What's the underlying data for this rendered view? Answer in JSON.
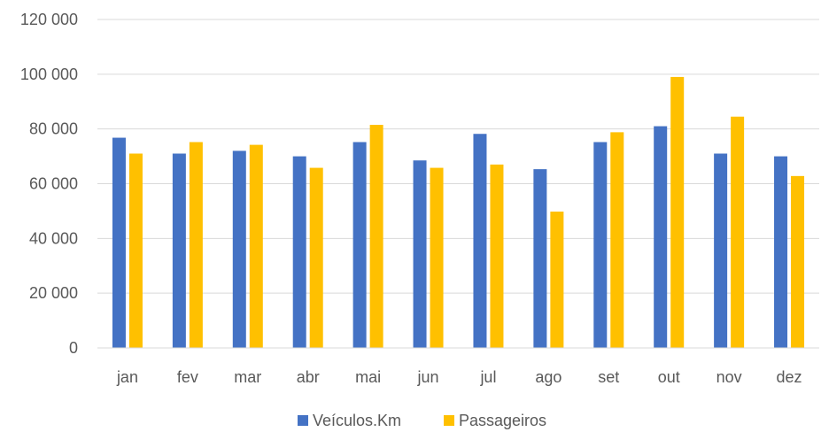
{
  "chart_data": {
    "type": "bar",
    "title": "",
    "xlabel": "",
    "ylabel": "",
    "categories": [
      "jan",
      "fev",
      "mar",
      "abr",
      "mai",
      "jun",
      "jul",
      "ago",
      "set",
      "out",
      "nov",
      "dez"
    ],
    "series": [
      {
        "name": "Veículos.Km",
        "color": "#4472C4",
        "values": [
          76800,
          71000,
          72000,
          70000,
          75200,
          68500,
          78200,
          65300,
          75200,
          81000,
          71000,
          70000
        ]
      },
      {
        "name": "Passageiros",
        "color": "#FFC000",
        "values": [
          71000,
          75200,
          74200,
          65800,
          81500,
          65800,
          67000,
          49800,
          78800,
          99000,
          84500,
          62800
        ]
      }
    ],
    "ylim": [
      0,
      120000
    ],
    "y_ticks": [
      0,
      20000,
      40000,
      60000,
      80000,
      100000,
      120000
    ],
    "y_tick_labels": [
      "0",
      "20 000",
      "40 000",
      "60 000",
      "80 000",
      "100 000",
      "120 000"
    ],
    "grid": true,
    "gridline_color": "#D9D9D9",
    "legend_position": "bottom"
  }
}
